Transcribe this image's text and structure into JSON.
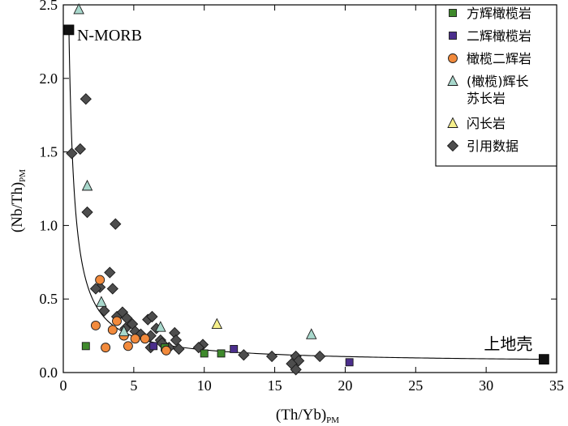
{
  "chart_data": {
    "type": "scatter",
    "xlabel": "(Th/Yb)",
    "xlabel_sub": "PM",
    "ylabel": "(Nb/Th)",
    "ylabel_sub": "PM",
    "xlim": [
      0,
      35
    ],
    "ylim": [
      0,
      2.5
    ],
    "xticks": [
      0,
      5,
      10,
      15,
      20,
      25,
      30,
      35
    ],
    "yticks": [
      0.0,
      0.5,
      1.0,
      1.5,
      2.0,
      2.5
    ],
    "xtick_labels": [
      "0",
      "5",
      "10",
      "15",
      "20",
      "25",
      "30",
      "35"
    ],
    "ytick_labels": [
      "0.0",
      "0.5",
      "1.0",
      "1.5",
      "2.0",
      "2.5"
    ],
    "legend_position": "top-right",
    "annotations": [
      {
        "text": "N-MORB",
        "x": 0.4,
        "y": 2.33
      },
      {
        "text": "上地壳",
        "x": 34.1,
        "y": 0.09
      }
    ],
    "endmembers": [
      {
        "name": "N-MORB",
        "x": 0.4,
        "y": 2.33
      },
      {
        "name": "上地壳",
        "x": 34.1,
        "y": 0.09
      }
    ],
    "mixing_curve": true,
    "series": [
      {
        "name": "方辉橄榄岩",
        "marker": "square",
        "color": "#3f8a2c",
        "points": [
          [
            1.6,
            0.18
          ],
          [
            7.2,
            0.17
          ],
          [
            10.0,
            0.13
          ],
          [
            11.2,
            0.13
          ]
        ]
      },
      {
        "name": "二辉橄榄岩",
        "marker": "square",
        "color": "#4b2e8c",
        "points": [
          [
            6.4,
            0.18
          ],
          [
            12.1,
            0.16
          ],
          [
            20.3,
            0.07
          ]
        ]
      },
      {
        "name": "橄榄二辉岩",
        "marker": "circle",
        "color": "#f28a3c",
        "points": [
          [
            2.6,
            0.63
          ],
          [
            2.3,
            0.32
          ],
          [
            3.5,
            0.29
          ],
          [
            3.8,
            0.35
          ],
          [
            4.3,
            0.25
          ],
          [
            5.1,
            0.23
          ],
          [
            5.8,
            0.23
          ],
          [
            4.6,
            0.18
          ],
          [
            3.0,
            0.17
          ],
          [
            7.3,
            0.15
          ]
        ]
      },
      {
        "name": "(橄榄)辉长苏长岩",
        "marker": "triangle-up",
        "color": "#a8d8cc",
        "points": [
          [
            1.1,
            2.47
          ],
          [
            1.7,
            1.27
          ],
          [
            2.7,
            0.48
          ],
          [
            4.3,
            0.28
          ],
          [
            6.9,
            0.31
          ],
          [
            17.6,
            0.26
          ]
        ]
      },
      {
        "name": "闪长岩",
        "marker": "triangle-up",
        "color": "#f6f08c",
        "points": [
          [
            10.9,
            0.33
          ]
        ]
      },
      {
        "name": "引用数据",
        "marker": "diamond",
        "color": "#4d4d4d",
        "points": [
          [
            0.6,
            1.49
          ],
          [
            1.2,
            1.52
          ],
          [
            1.6,
            1.86
          ],
          [
            1.7,
            1.09
          ],
          [
            3.7,
            1.01
          ],
          [
            3.3,
            0.68
          ],
          [
            2.6,
            0.58
          ],
          [
            3.5,
            0.57
          ],
          [
            2.3,
            0.57
          ],
          [
            2.9,
            0.42
          ],
          [
            3.8,
            0.38
          ],
          [
            4.2,
            0.41
          ],
          [
            4.5,
            0.37
          ],
          [
            4.9,
            0.33
          ],
          [
            4.4,
            0.3
          ],
          [
            5.1,
            0.28
          ],
          [
            5.5,
            0.26
          ],
          [
            6.0,
            0.36
          ],
          [
            6.3,
            0.38
          ],
          [
            6.6,
            0.3
          ],
          [
            6.2,
            0.25
          ],
          [
            6.9,
            0.22
          ],
          [
            7.0,
            0.2
          ],
          [
            7.5,
            0.17
          ],
          [
            6.2,
            0.17
          ],
          [
            7.9,
            0.27
          ],
          [
            8.0,
            0.22
          ],
          [
            8.2,
            0.16
          ],
          [
            9.9,
            0.19
          ],
          [
            9.6,
            0.17
          ],
          [
            12.8,
            0.12
          ],
          [
            14.8,
            0.11
          ],
          [
            16.5,
            0.11
          ],
          [
            16.7,
            0.08
          ],
          [
            16.2,
            0.06
          ],
          [
            16.5,
            0.02
          ],
          [
            18.2,
            0.11
          ]
        ]
      }
    ]
  }
}
